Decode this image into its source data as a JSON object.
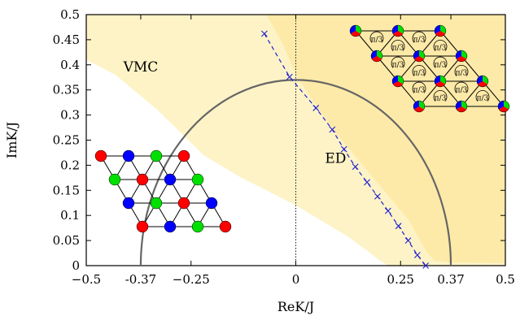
{
  "chart_data": {
    "type": "phase-diagram",
    "xlabel": "ReK/J",
    "ylabel": "ImK/J",
    "xlim": [
      -0.5,
      0.5
    ],
    "ylim": [
      0,
      0.5
    ],
    "xticks": [
      -0.5,
      -0.37,
      -0.25,
      0,
      0.25,
      0.37,
      0.5
    ],
    "xtick_labels": [
      "−0.5",
      "-0.37",
      "−0.25",
      "0",
      "0.25",
      "0.37",
      "0.5"
    ],
    "yticks": [
      0,
      0.05,
      0.1,
      0.15,
      0.2,
      0.25,
      0.3,
      0.35,
      0.4,
      0.45,
      0.5
    ],
    "ytick_labels": [
      "0",
      "0.05",
      "0.1",
      "0.15",
      "0.2",
      "0.25",
      "0.3",
      "0.35",
      "0.4",
      "0.45",
      "0.5"
    ],
    "grid": false,
    "region_labels": [
      {
        "text": "VMC",
        "x": -0.37,
        "y": 0.387
      },
      {
        "text": "ED",
        "x": 0.095,
        "y": 0.205
      }
    ],
    "vmc_boundary": {
      "x": [
        -0.5,
        -0.43,
        -0.33,
        -0.22,
        -0.13,
        -0.07,
        0.0,
        0.06,
        0.12,
        0.17,
        0.2,
        0.22
      ],
      "y": [
        0.41,
        0.38,
        0.31,
        0.22,
        0.175,
        0.15,
        0.12,
        0.09,
        0.06,
        0.03,
        0.01,
        0
      ]
    },
    "ed_boundary": {
      "x": [
        -0.07,
        -0.03,
        0.0,
        0.04,
        0.09,
        0.14,
        0.19,
        0.24,
        0.27,
        0.29,
        0.31,
        0.33,
        0.37,
        0.5
      ],
      "y": [
        0.5,
        0.44,
        0.38,
        0.33,
        0.27,
        0.22,
        0.17,
        0.12,
        0.09,
        0.06,
        0.03,
        0.01,
        0.006,
        0.005
      ]
    },
    "series": [
      {
        "type": "dashed-line-with-x-markers",
        "color": "#1f1fcf",
        "x": [
          -0.075,
          -0.015,
          0.048,
          0.087,
          0.115,
          0.142,
          0.17,
          0.195,
          0.22,
          0.245,
          0.268,
          0.29,
          0.31
        ],
        "y": [
          0.462,
          0.376,
          0.314,
          0.271,
          0.232,
          0.197,
          0.166,
          0.138,
          0.109,
          0.079,
          0.05,
          0.021,
          0
        ]
      },
      {
        "type": "arc",
        "color": "#666666",
        "center": [
          0,
          0
        ],
        "radius": 0.37,
        "visible_theta_range": [
          0,
          180
        ]
      }
    ],
    "colors": {
      "ed_region": "#fdeaa8",
      "vmc_region": "#fdf3c6",
      "white_region": "#ffffff",
      "site_red": "#ff0000",
      "site_blue": "#0000ff",
      "site_green": "#00e000"
    },
    "insets": [
      {
        "name": "kagome-lattice-inset",
        "rows": [
          [
            "red",
            "blue",
            "green",
            "red"
          ],
          [
            "green",
            "red",
            "blue",
            "green"
          ],
          [
            "blue",
            "green",
            "red",
            "blue"
          ],
          [
            "red",
            "blue",
            "green",
            "red"
          ]
        ]
      },
      {
        "name": "chiral-lattice-inset",
        "cell_label": "π/3"
      }
    ]
  }
}
